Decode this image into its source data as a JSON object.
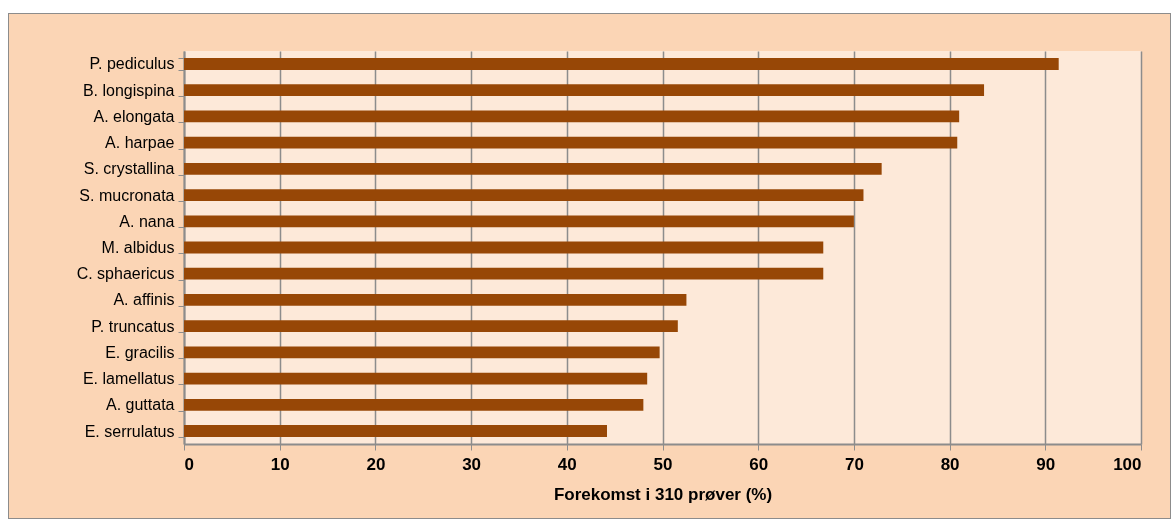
{
  "chart_data": {
    "type": "bar",
    "orientation": "horizontal",
    "xlabel": "Forekomst i 310 prøver (%)",
    "categories": [
      "P. pediculus",
      "B. longispina",
      "A. elongata",
      "A. harpae",
      "S. crystallina",
      "S. mucronata",
      "A. nana",
      "M. albidus",
      "C. sphaericus",
      "A. affinis",
      "P. truncatus",
      "E. gracilis",
      "E. lamellatus",
      "A. guttata",
      "E. serrulatus"
    ],
    "values": [
      91.4,
      83.6,
      81.0,
      80.8,
      72.9,
      71.0,
      70.0,
      66.8,
      66.8,
      52.5,
      51.6,
      49.7,
      48.4,
      48.0,
      44.2
    ],
    "color": "#974706",
    "xlim": [
      0,
      100
    ],
    "xticks": [
      0,
      10,
      20,
      30,
      40,
      50,
      60,
      70,
      80,
      90,
      100
    ],
    "grid": "x"
  }
}
